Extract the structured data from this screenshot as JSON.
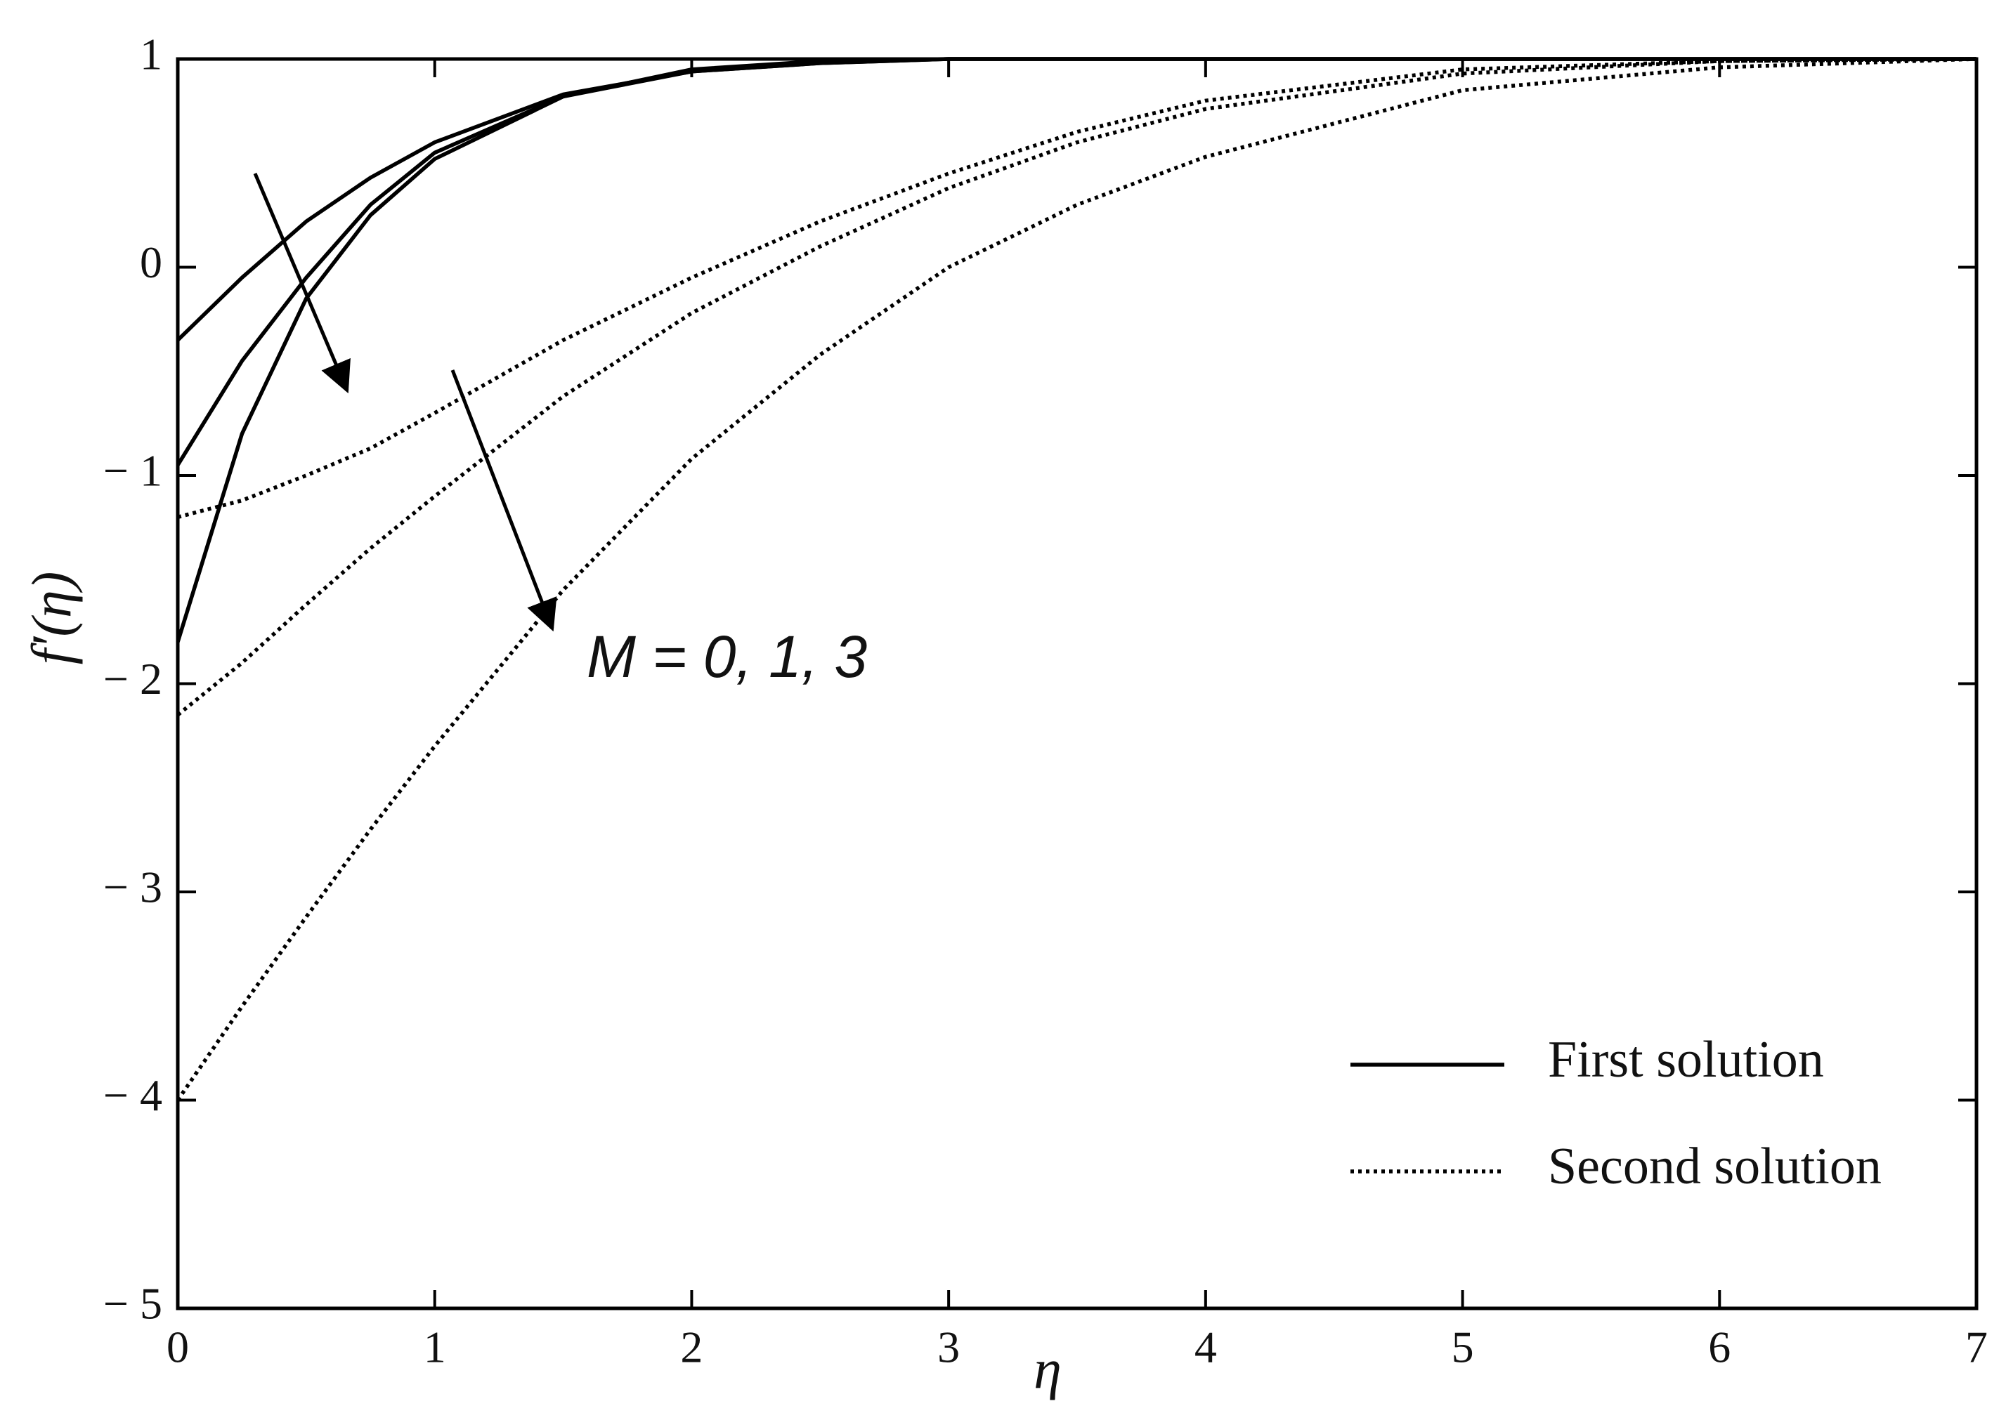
{
  "chart_data": {
    "type": "line",
    "xlabel": "η",
    "ylabel": "f′(η)",
    "annotation": "M = 0, 1, 3",
    "x": [
      0,
      0.25,
      0.5,
      0.75,
      1,
      1.5,
      2,
      2.5,
      3,
      3.5,
      4,
      5,
      6,
      7
    ],
    "series": [
      {
        "style": "solid",
        "color": "#000000",
        "values": [
          -0.35,
          -0.05,
          0.22,
          0.43,
          0.6,
          0.83,
          0.94,
          0.98,
          1,
          1,
          1,
          1,
          1,
          1
        ]
      },
      {
        "style": "solid",
        "color": "#000000",
        "values": [
          -0.95,
          -0.45,
          -0.05,
          0.3,
          0.55,
          0.82,
          0.94,
          0.98,
          1,
          1,
          1,
          1,
          1,
          1
        ]
      },
      {
        "style": "solid",
        "color": "#000000",
        "values": [
          -1.8,
          -0.8,
          -0.15,
          0.25,
          0.52,
          0.82,
          0.95,
          0.99,
          1,
          1,
          1,
          1,
          1,
          1
        ]
      },
      {
        "style": "dotted",
        "color": "#000000",
        "values": [
          -1.2,
          -1.12,
          -1.0,
          -0.87,
          -0.7,
          -0.35,
          -0.05,
          0.22,
          0.45,
          0.65,
          0.8,
          0.95,
          0.99,
          1
        ]
      },
      {
        "style": "dotted",
        "color": "#000000",
        "values": [
          -2.15,
          -1.9,
          -1.62,
          -1.35,
          -1.1,
          -0.62,
          -0.22,
          0.1,
          0.38,
          0.6,
          0.76,
          0.93,
          0.99,
          1
        ]
      },
      {
        "style": "dotted",
        "color": "#000000",
        "values": [
          -4.0,
          -3.55,
          -3.12,
          -2.7,
          -2.3,
          -1.55,
          -0.92,
          -0.42,
          0.0,
          0.3,
          0.53,
          0.85,
          0.96,
          1
        ]
      }
    ],
    "legend": [
      {
        "label": "First solution",
        "style": "solid"
      },
      {
        "label": "Second solution",
        "style": "dotted"
      }
    ],
    "xlim": [
      0,
      7
    ],
    "xticks": [
      0,
      1,
      2,
      3,
      4,
      5,
      6,
      7
    ],
    "ylim": [
      -5,
      1
    ],
    "yticks": [
      {
        "value": -5,
        "label": "− 5"
      },
      {
        "value": -4,
        "label": "− 4"
      },
      {
        "value": -3,
        "label": "− 3"
      },
      {
        "value": -2,
        "label": "− 2"
      },
      {
        "value": -1,
        "label": "− 1"
      },
      0,
      1
    ],
    "grid": false
  }
}
